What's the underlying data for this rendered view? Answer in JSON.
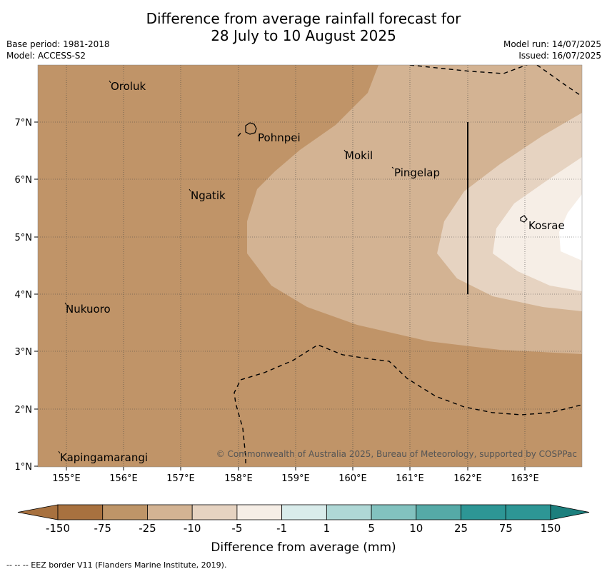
{
  "title_line1": "Difference from average rainfall forecast for",
  "title_line2": "28 July to 10 August 2025",
  "base_period": "Base period: 1981-2018",
  "model": "Model: ACCESS-S2",
  "model_run": "Model run: 14/07/2025",
  "issued": "Issued: 16/07/2025",
  "copyright": "© Commonwealth of Australia 2025, Bureau of Meteorology, supported by COSPPac",
  "map": {
    "lon_labels": [
      "155°E",
      "156°E",
      "157°E",
      "158°E",
      "159°E",
      "160°E",
      "161°E",
      "162°E",
      "163°E"
    ],
    "lat_labels": [
      "7°N",
      "6°N",
      "5°N",
      "4°N",
      "3°N",
      "2°N",
      "1°N"
    ],
    "places": [
      {
        "name": "Oroluk",
        "lon": 155.8,
        "lat": 7.6
      },
      {
        "name": "Pohnpei",
        "lon": 158.3,
        "lat": 6.9
      },
      {
        "name": "Mokil",
        "lon": 159.9,
        "lat": 6.7
      },
      {
        "name": "Pingelap",
        "lon": 160.7,
        "lat": 6.2
      },
      {
        "name": "Ngatik",
        "lon": 157.2,
        "lat": 5.8
      },
      {
        "name": "Kosrae",
        "lon": 163.0,
        "lat": 5.3
      },
      {
        "name": "Nukuoro",
        "lon": 154.9,
        "lat": 3.8
      },
      {
        "name": "Kapingamarangi",
        "lon": 154.8,
        "lat": 1.1
      }
    ]
  },
  "colorbar": {
    "labels": [
      "-150",
      "-75",
      "-25",
      "-10",
      "-5",
      "-1",
      "1",
      "5",
      "10",
      "25",
      "75",
      "150"
    ],
    "colors": [
      "#a8713f",
      "#be9568",
      "#d3b393",
      "#e6d3c1",
      "#f6eee6",
      "#ffffff",
      "#d9eceb",
      "#afd8d6",
      "#82c2bf",
      "#55aaa7",
      "#2d9695",
      "#1c7f7d"
    ],
    "title": "Difference from average (mm)"
  },
  "footnote": "--  --  -- EEZ border V11 (Flanders Marine Institute, 2019)."
}
